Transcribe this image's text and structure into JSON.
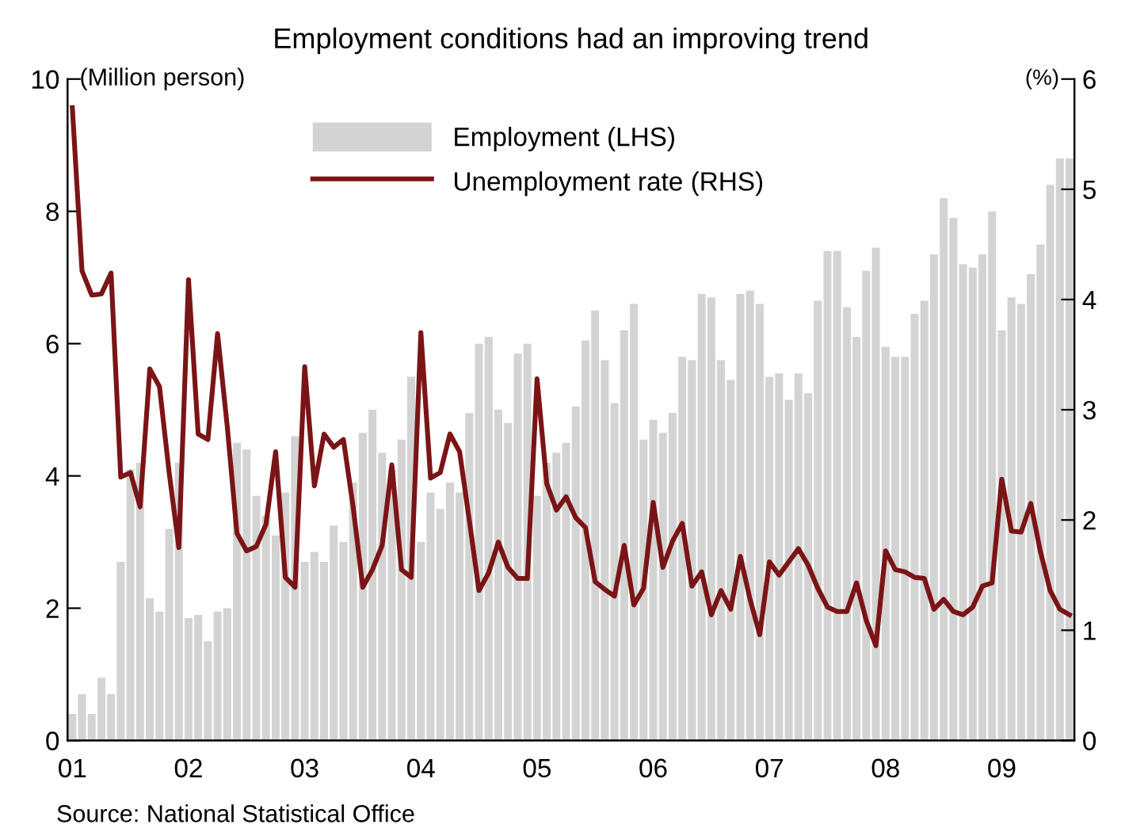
{
  "chart_data": {
    "type": "bar",
    "title": "Employment conditions had an improving trend",
    "ylabel": "(Million person)",
    "y2label": "(%)",
    "categories": [
      "01",
      null,
      null,
      null,
      null,
      null,
      null,
      null,
      null,
      null,
      null,
      null,
      "02",
      null,
      null,
      null,
      null,
      null,
      null,
      null,
      null,
      null,
      null,
      null,
      "03",
      null,
      null,
      null,
      null,
      null,
      null,
      null,
      null,
      null,
      null,
      null,
      "04",
      null,
      null,
      null,
      null,
      null,
      null,
      null,
      null,
      null,
      null,
      null,
      "05",
      null,
      null,
      null,
      null,
      null,
      null,
      null,
      null,
      null,
      null,
      null,
      "06",
      null,
      null,
      null,
      null,
      null,
      null,
      null,
      null,
      null,
      null,
      null,
      "07",
      null,
      null,
      null,
      null,
      null,
      null,
      null,
      null,
      null,
      null,
      null,
      "08",
      null,
      null,
      null,
      null,
      null,
      null,
      null,
      null,
      null,
      null,
      null,
      "09",
      null,
      null,
      null,
      null,
      null,
      null,
      null
    ],
    "series": [
      {
        "name": "Employment (LHS)",
        "color": "#d3d3d3",
        "values": [
          0.4,
          0.7,
          0.4,
          0.95,
          0.7,
          2.7,
          4.1,
          4.2,
          2.15,
          1.95,
          3.2,
          4.2,
          1.85,
          1.9,
          1.5,
          1.95,
          2.0,
          4.5,
          4.4,
          3.7,
          3.4,
          3.1,
          3.75,
          4.6,
          2.7,
          2.85,
          2.7,
          3.25,
          3.0,
          3.9,
          4.65,
          5.0,
          4.35,
          4.1,
          4.55,
          5.5,
          3.0,
          3.75,
          3.5,
          3.9,
          3.75,
          4.95,
          6.0,
          6.1,
          5.0,
          4.8,
          5.85,
          6.0,
          3.7,
          4.2,
          4.35,
          4.5,
          5.05,
          6.05,
          6.5,
          5.75,
          5.1,
          6.2,
          6.6,
          4.55,
          4.85,
          4.65,
          4.95,
          5.8,
          5.75,
          6.75,
          6.7,
          5.75,
          5.45,
          6.75,
          6.8,
          6.6,
          5.5,
          5.55,
          5.15,
          5.55,
          5.25,
          6.65,
          7.4,
          7.4,
          6.55,
          6.1,
          7.1,
          7.45,
          5.95,
          5.8,
          5.8,
          6.45,
          6.65,
          7.35,
          8.2,
          7.9,
          7.2,
          7.15,
          7.35,
          8.0,
          6.2,
          6.7,
          6.6,
          7.05,
          7.5,
          8.4,
          8.8,
          8.8
        ]
      },
      {
        "name": "Unemployment rate (RHS)",
        "type": "line",
        "axis": "y2",
        "color": "#7b1416",
        "values": [
          5.74,
          4.26,
          4.04,
          4.05,
          4.24,
          2.39,
          2.43,
          2.12,
          3.37,
          3.21,
          2.43,
          1.75,
          4.18,
          2.78,
          2.73,
          3.69,
          2.85,
          1.88,
          1.72,
          1.76,
          1.96,
          2.62,
          1.48,
          1.39,
          3.39,
          2.31,
          2.78,
          2.66,
          2.73,
          2.12,
          1.39,
          1.55,
          1.77,
          2.5,
          1.55,
          1.48,
          3.7,
          2.38,
          2.43,
          2.78,
          2.62,
          2.0,
          1.36,
          1.52,
          1.8,
          1.57,
          1.47,
          1.47,
          3.28,
          2.33,
          2.09,
          2.21,
          2.02,
          1.93,
          1.44,
          1.37,
          1.31,
          1.77,
          1.23,
          1.38,
          2.16,
          1.57,
          1.81,
          1.97,
          1.4,
          1.53,
          1.14,
          1.36,
          1.19,
          1.67,
          1.28,
          0.96,
          1.62,
          1.5,
          1.62,
          1.74,
          1.59,
          1.38,
          1.21,
          1.17,
          1.17,
          1.43,
          1.09,
          0.86,
          1.72,
          1.55,
          1.53,
          1.48,
          1.47,
          1.19,
          1.28,
          1.17,
          1.14,
          1.21,
          1.4,
          1.43,
          2.37,
          1.9,
          1.89,
          2.15,
          1.71,
          1.36,
          1.19,
          1.14
        ]
      }
    ],
    "ylim": [
      0,
      10
    ],
    "yticks": [
      0,
      2,
      4,
      6,
      8,
      10
    ],
    "y2lim": [
      0,
      6
    ],
    "y2ticks": [
      0,
      1,
      2,
      3,
      4,
      5,
      6
    ],
    "line_style": "solid",
    "marker": "none",
    "grid": false,
    "legend": "top",
    "annotations": [
      "Source: National Statistical Office"
    ]
  }
}
